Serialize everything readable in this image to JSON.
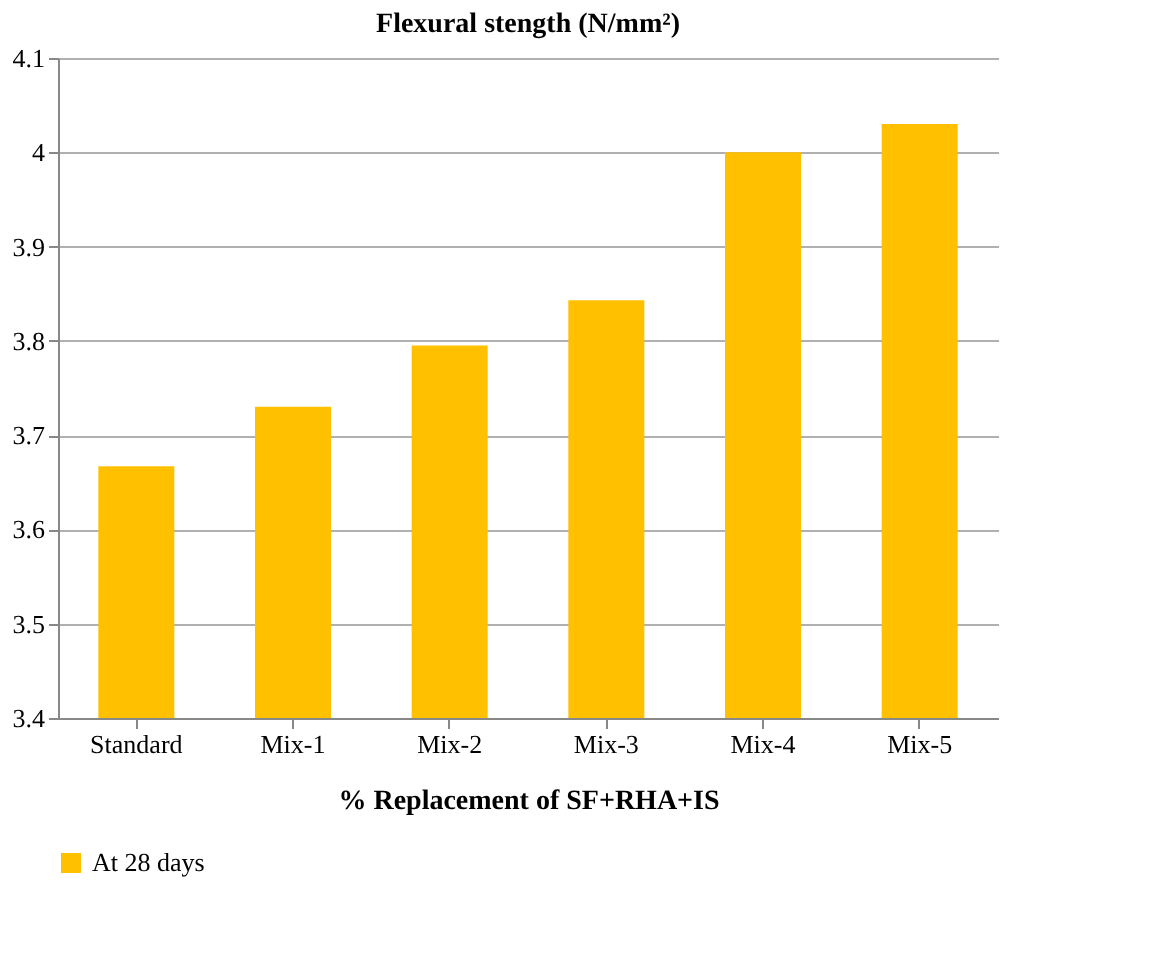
{
  "chart_data": {
    "type": "bar",
    "title": "Flexural stength (N/mm²)",
    "xlabel": "% Replacement of SF+RHA+IS",
    "categories": [
      "Standard",
      "Mix-1",
      "Mix-2",
      "Mix-3",
      "Mix-4",
      "Mix-5"
    ],
    "series": [
      {
        "name": "At 28 days",
        "color": "#ffc000",
        "values": [
          3.667,
          3.73,
          3.795,
          3.843,
          4.0,
          4.03
        ]
      }
    ],
    "ylim": [
      3.4,
      4.1
    ],
    "yticks": [
      3.4,
      3.5,
      3.6,
      3.7,
      3.8,
      3.9,
      4,
      4.1
    ],
    "grid": "y",
    "legend": "bottom"
  }
}
